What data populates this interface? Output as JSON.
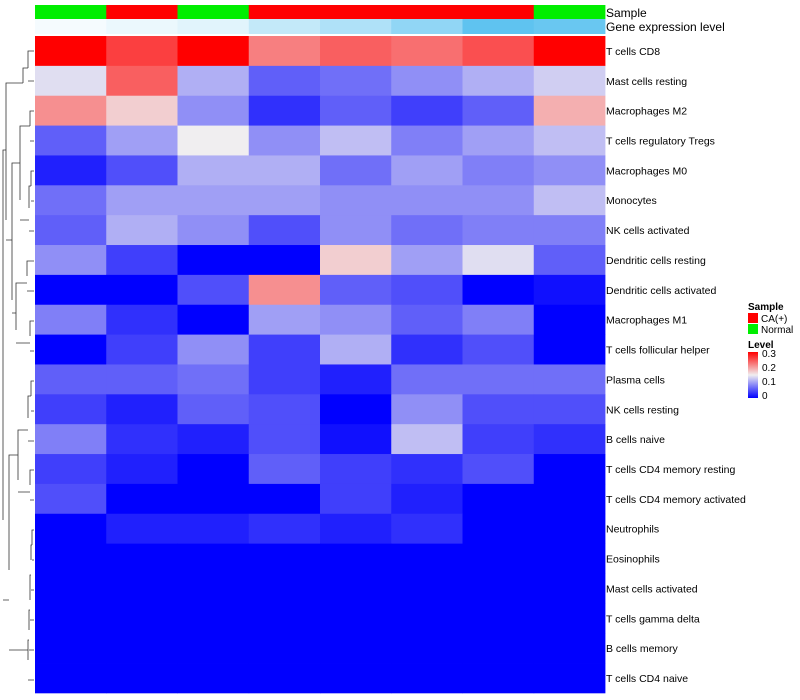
{
  "chart_data": {
    "type": "heatmap",
    "annotation_labels": {
      "sample": "Sample",
      "gene_expression": "Gene expression level"
    },
    "sample_annotation": [
      "Normal",
      "CA(+)",
      "Normal",
      "CA(+)",
      "CA(+)",
      "CA(+)",
      "CA(+)",
      "Normal"
    ],
    "gene_expression_annotation": [
      0.01,
      0.02,
      0.03,
      0.06,
      0.08,
      0.11,
      0.16,
      0.15
    ],
    "rows": [
      "T cells CD8",
      "Mast cells resting",
      "Macrophages M2",
      "T cells regulatory  Tregs",
      "Macrophages M0",
      "Monocytes",
      "NK cells activated",
      "Dendritic cells resting",
      "Dendritic cells activated",
      "Macrophages M1",
      "T cells follicular helper",
      "Plasma cells",
      "NK cells resting",
      "B cells naive",
      "T cells CD4 memory resting",
      "T cells CD4 memory activated",
      "Neutrophils",
      "Eosinophils",
      "Mast cells activated",
      "T cells gamma delta",
      "B cells memory",
      "T cells CD4 naive"
    ],
    "values": [
      [
        0.3,
        0.26,
        0.3,
        0.22,
        0.24,
        0.23,
        0.25,
        0.3
      ],
      [
        0.14,
        0.24,
        0.11,
        0.06,
        0.07,
        0.09,
        0.11,
        0.13
      ],
      [
        0.21,
        0.17,
        0.09,
        0.03,
        0.06,
        0.04,
        0.06,
        0.19
      ],
      [
        0.06,
        0.1,
        0.15,
        0.09,
        0.12,
        0.08,
        0.1,
        0.12
      ],
      [
        0.02,
        0.05,
        0.11,
        0.11,
        0.07,
        0.1,
        0.08,
        0.09
      ],
      [
        0.07,
        0.1,
        0.1,
        0.1,
        0.09,
        0.09,
        0.09,
        0.12
      ],
      [
        0.06,
        0.11,
        0.09,
        0.05,
        0.09,
        0.07,
        0.08,
        0.08
      ],
      [
        0.09,
        0.04,
        0.0,
        0.0,
        0.17,
        0.1,
        0.14,
        0.06
      ],
      [
        0.0,
        0.0,
        0.05,
        0.21,
        0.06,
        0.05,
        0.0,
        0.01
      ],
      [
        0.08,
        0.03,
        0.0,
        0.1,
        0.09,
        0.06,
        0.08,
        0.0
      ],
      [
        0.0,
        0.04,
        0.09,
        0.04,
        0.11,
        0.03,
        0.05,
        0.0
      ],
      [
        0.06,
        0.06,
        0.07,
        0.04,
        0.02,
        0.07,
        0.07,
        0.07
      ],
      [
        0.04,
        0.02,
        0.06,
        0.05,
        0.0,
        0.09,
        0.05,
        0.05
      ],
      [
        0.08,
        0.03,
        0.02,
        0.05,
        0.01,
        0.12,
        0.04,
        0.03
      ],
      [
        0.04,
        0.02,
        0.0,
        0.06,
        0.04,
        0.03,
        0.05,
        0.0
      ],
      [
        0.05,
        0.0,
        0.0,
        0.0,
        0.04,
        0.02,
        0.0,
        0.0
      ],
      [
        0.0,
        0.02,
        0.02,
        0.03,
        0.02,
        0.03,
        0.0,
        0.0
      ],
      [
        0.0,
        0.0,
        0.0,
        0.0,
        0.0,
        0.0,
        0.0,
        0.0
      ],
      [
        0.0,
        0.0,
        0.0,
        0.0,
        0.0,
        0.0,
        0.0,
        0.0
      ],
      [
        0.0,
        0.0,
        0.0,
        0.0,
        0.0,
        0.0,
        0.0,
        0.0
      ],
      [
        0.0,
        0.0,
        0.0,
        0.0,
        0.0,
        0.0,
        0.0,
        0.0
      ],
      [
        0.0,
        0.0,
        0.0,
        0.0,
        0.0,
        0.0,
        0.0,
        0.0
      ]
    ],
    "color_scale": {
      "low": "#0000ff",
      "mid": "#f0eef0",
      "high": "#ff0000",
      "min": 0,
      "mid_value": 0.15,
      "max": 0.3
    },
    "legend": {
      "sample_title": "Sample",
      "sample_items": [
        {
          "label": "CA(+)",
          "color": "#ff0000"
        },
        {
          "label": "Normal",
          "color": "#00ee00"
        }
      ],
      "level_title": "Level",
      "level_ticks": [
        "0.3",
        "0.2",
        "0.1",
        "0"
      ],
      "placement": "right"
    },
    "annotation_colors": {
      "CA(+)": "#ff0000",
      "Normal": "#00ee00",
      "expr_low": "#ffffff",
      "expr_high": "#5fc3f0"
    },
    "dendrogram": "left, hierarchical clustering of rows"
  }
}
